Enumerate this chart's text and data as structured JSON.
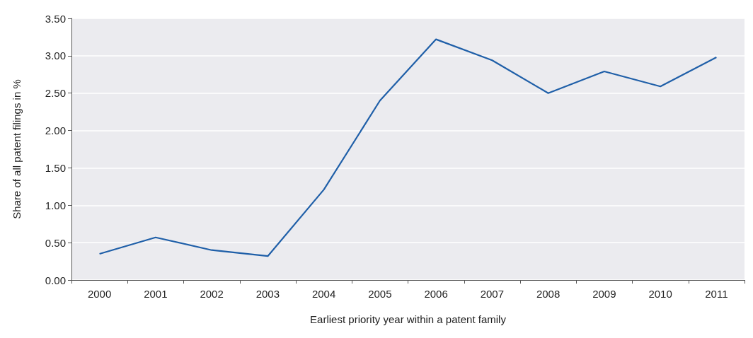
{
  "chart_data": {
    "type": "line",
    "xlabel": "Earliest priority year within a patent family",
    "ylabel": "Share of all patent filings in %",
    "categories": [
      "2000",
      "2001",
      "2002",
      "2003",
      "2004",
      "2005",
      "2006",
      "2007",
      "2008",
      "2009",
      "2010",
      "2011"
    ],
    "series": [
      {
        "color": "#1f5fa8",
        "values": [
          0.35,
          0.57,
          0.4,
          0.32,
          1.21,
          2.4,
          3.22,
          2.94,
          2.5,
          2.79,
          2.59,
          2.98
        ]
      }
    ],
    "ylim": [
      0,
      3.5
    ],
    "yticks": [
      {
        "value": 0,
        "label": "0.00"
      },
      {
        "value": 0.5,
        "label": "0.50"
      },
      {
        "value": 1,
        "label": "1.00"
      },
      {
        "value": 1.5,
        "label": "1.50"
      },
      {
        "value": 2,
        "label": "2.00"
      },
      {
        "value": 2.5,
        "label": "2.50"
      },
      {
        "value": 3,
        "label": "3.00"
      },
      {
        "value": 3.5,
        "label": "3.50"
      }
    ],
    "grid": "y",
    "marker": "none",
    "line_style": "solid"
  }
}
